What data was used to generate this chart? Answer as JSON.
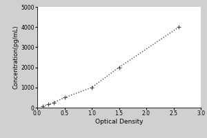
{
  "x_data": [
    0.1,
    0.2,
    0.3,
    0.5,
    1.0,
    1.5,
    2.6
  ],
  "y_data": [
    78,
    156,
    250,
    500,
    1000,
    2000,
    4000
  ],
  "xlabel": "Optical Density",
  "ylabel": "Concentration(pg/mL)",
  "xlim": [
    0,
    3
  ],
  "ylim": [
    0,
    5000
  ],
  "xticks": [
    0,
    0.5,
    1,
    1.5,
    2,
    2.5,
    3
  ],
  "yticks": [
    0,
    1000,
    2000,
    3000,
    4000,
    5000
  ],
  "line_color": "#444444",
  "marker_color": "#444444",
  "fig_bg_color": "#d0d0d0",
  "plot_bg_color": "#ffffff",
  "axis_fontsize": 6.5,
  "tick_fontsize": 5.5,
  "ylabel_fontsize": 6.0
}
